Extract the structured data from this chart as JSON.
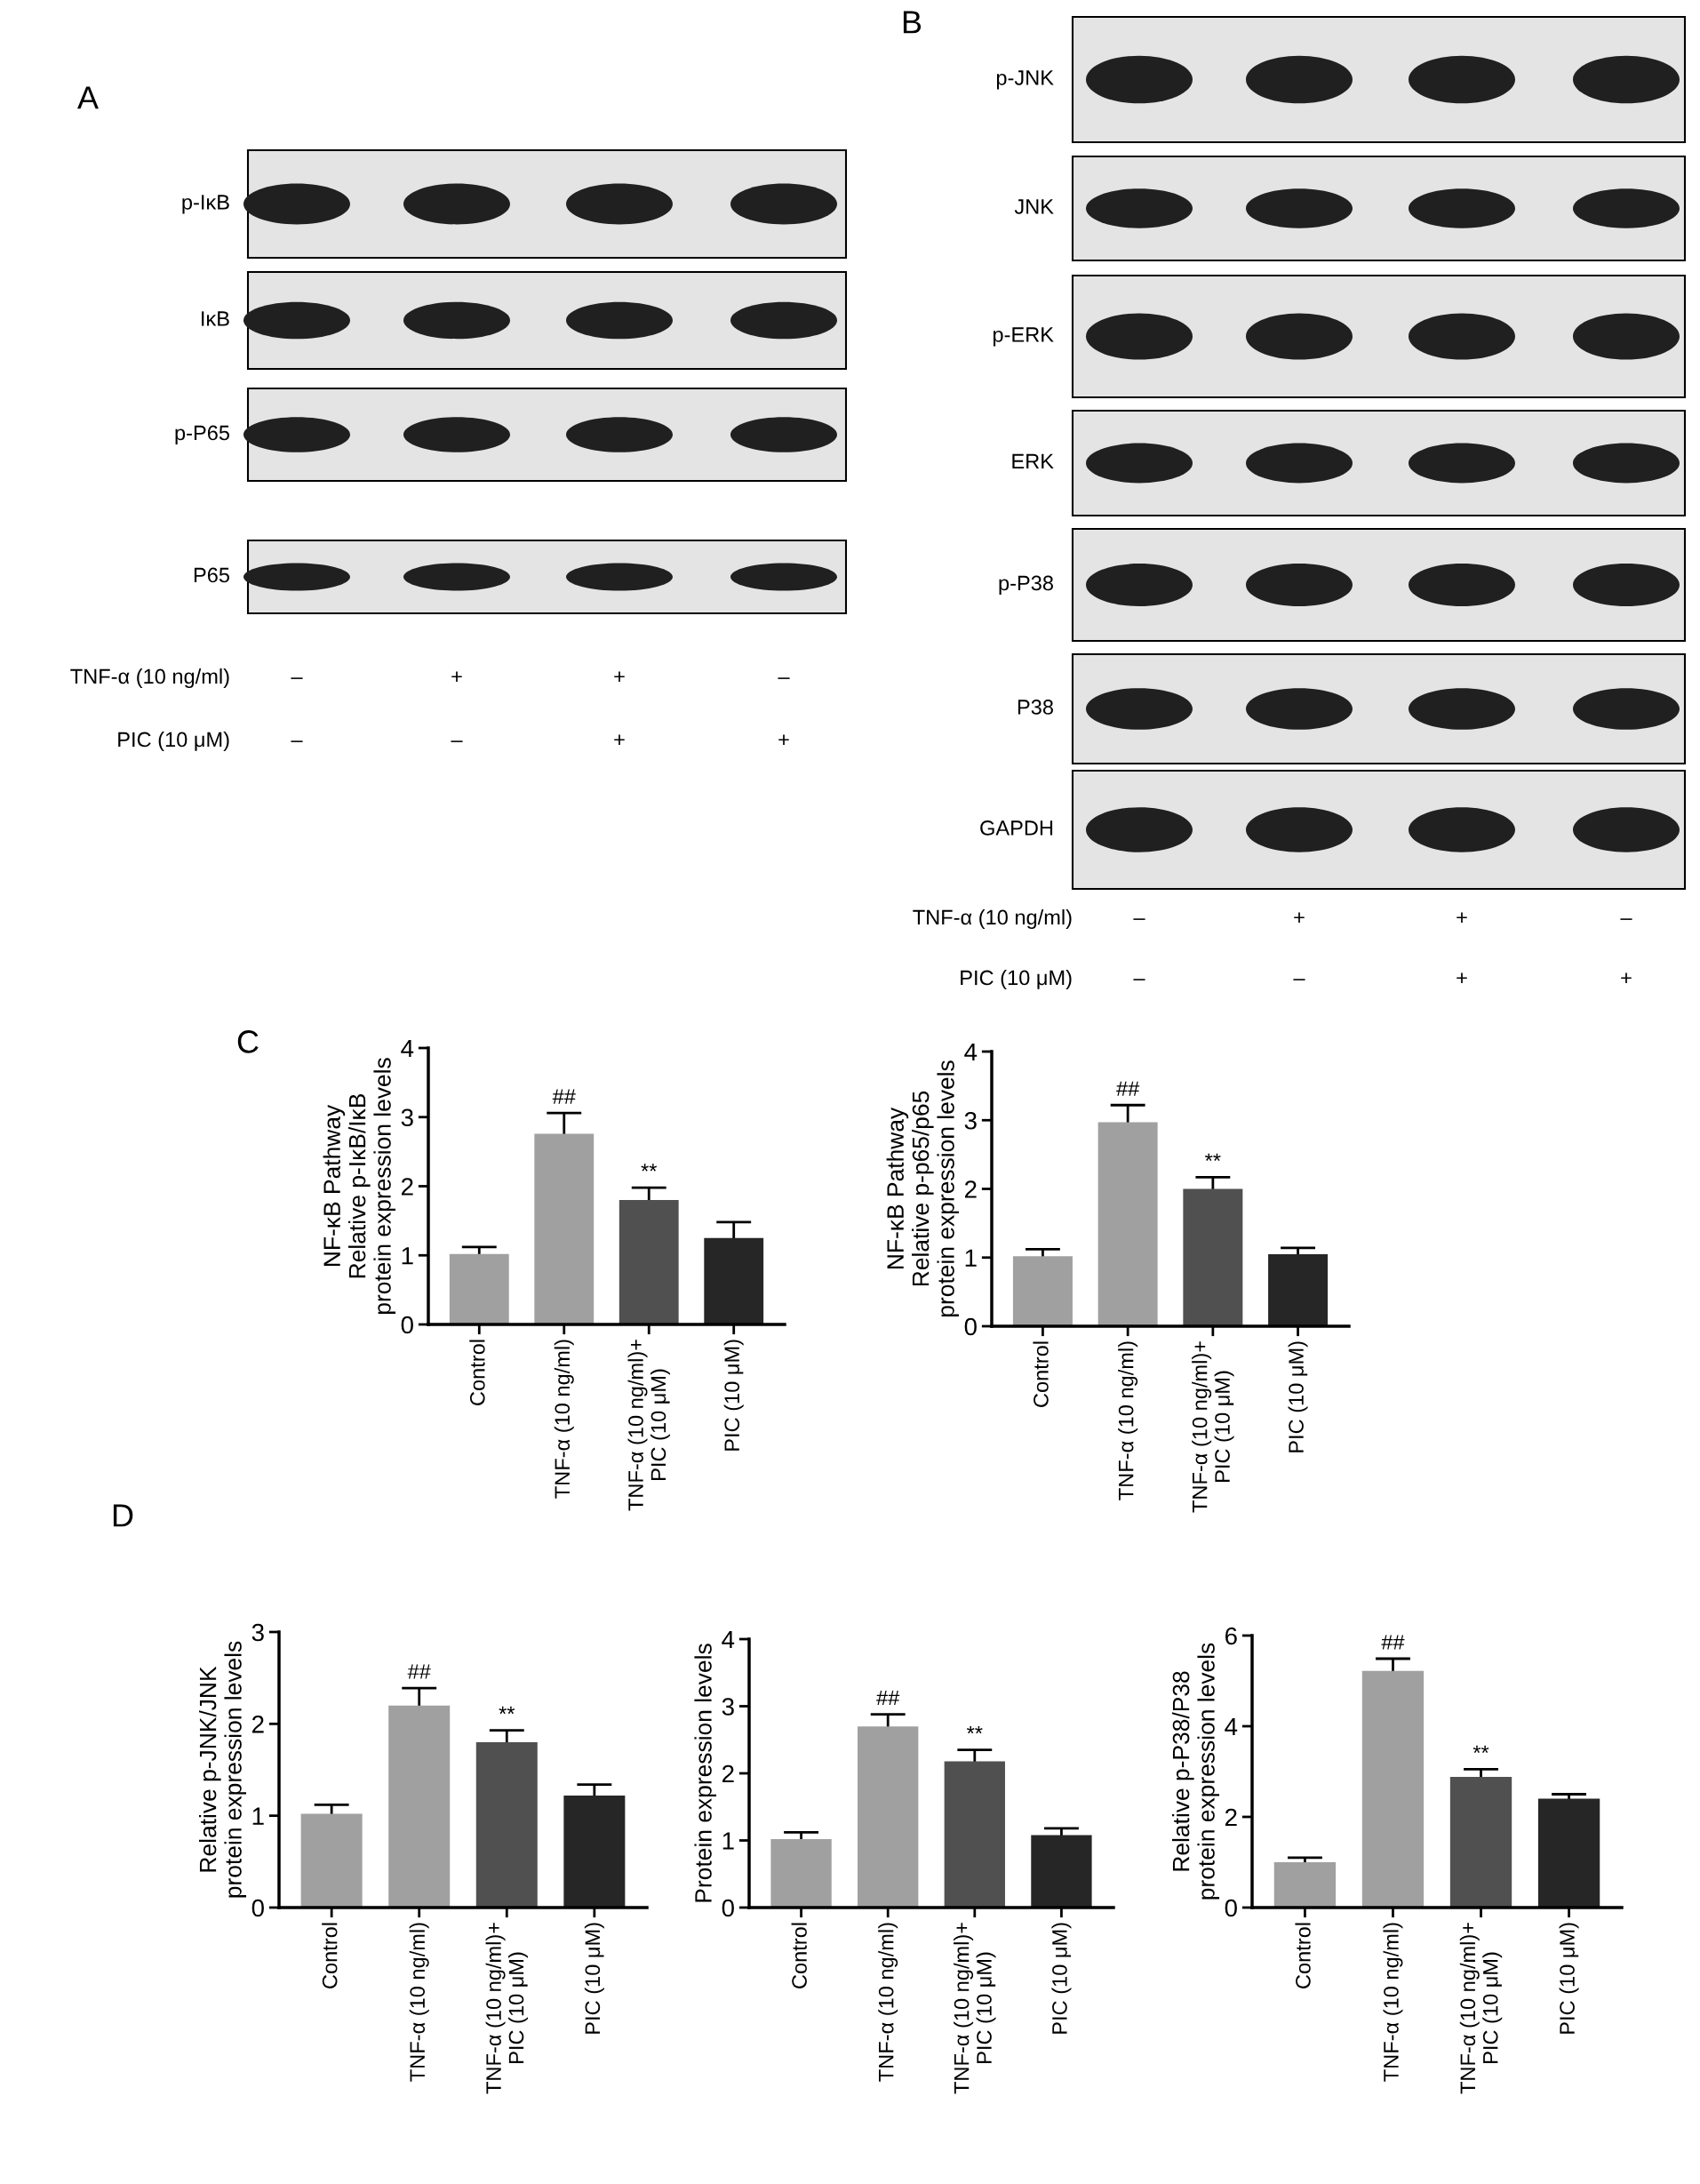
{
  "chart_data": [
    {
      "type": "other",
      "title": "A",
      "categories": [
        "p-IκB",
        "IκB",
        "p-P65",
        "P65"
      ],
      "annotations": [
        "TNF-α (10 ng/ml)",
        "–",
        "+",
        "+",
        "–",
        "PIC (10 μM)",
        "–",
        "–",
        "+",
        "+"
      ]
    },
    {
      "type": "other",
      "title": "B",
      "categories": [
        "p-JNK",
        "JNK",
        "p-ERK",
        "ERK",
        "p-P38",
        "P38",
        "GAPDH"
      ],
      "annotations": [
        "TNF-α (10 ng/ml)",
        "–",
        "+",
        "+",
        "–",
        "PIC (10 μM)",
        "–",
        "–",
        "+",
        "+"
      ]
    },
    {
      "type": "bar",
      "title": "C",
      "ylabel": "NF-κB Pathway\nRelative p-IκB/IκB\nprotein expression levels",
      "categories": [
        "Control",
        "TNF-α (10 ng/ml)",
        "TNF-α (10 ng/ml)+\nPIC (10 μM)",
        "PIC (10 μM)"
      ],
      "values": [
        1.02,
        2.76,
        1.8,
        1.25
      ],
      "errors": [
        0.1,
        0.3,
        0.18,
        0.23
      ],
      "colors": [
        "#a0a0a0",
        "#a0a0a0",
        "#505050",
        "#262626"
      ],
      "ylim": [
        0,
        4
      ],
      "yticks": [
        0,
        1,
        2,
        3,
        4
      ],
      "annotations": [
        {
          "text": "##",
          "x": "TNF-α (10 ng/ml)",
          "y": 3.06
        },
        {
          "text": "**",
          "x": "TNF-α (10 ng/ml)+\nPIC (10 μM)",
          "y": 1.98
        }
      ]
    },
    {
      "type": "bar",
      "ylabel": "NF-κB Pathway\nRelative p-p65/p65\nprotein expression levels",
      "categories": [
        "Control",
        "TNF-α (10 ng/ml)",
        "TNF-α (10 ng/ml)+\nPIC (10 μM)",
        "PIC (10 μM)"
      ],
      "values": [
        1.02,
        2.97,
        2.0,
        1.05
      ],
      "errors": [
        0.1,
        0.25,
        0.17,
        0.09
      ],
      "colors": [
        "#a0a0a0",
        "#a0a0a0",
        "#505050",
        "#262626"
      ],
      "ylim": [
        0,
        4
      ],
      "yticks": [
        0,
        1,
        2,
        3,
        4
      ],
      "annotations": [
        {
          "text": "##",
          "x": "TNF-α (10 ng/ml)",
          "y": 3.22
        },
        {
          "text": "**",
          "x": "TNF-α (10 ng/ml)+\nPIC (10 μM)",
          "y": 2.17
        }
      ]
    },
    {
      "type": "bar",
      "title": "D",
      "ylabel": "Relative p-JNK/JNK\nprotein expression levels",
      "categories": [
        "Control",
        "TNF-α (10 ng/ml)",
        "TNF-α (10 ng/ml)+\nPIC (10 μM)",
        "PIC (10 μM)"
      ],
      "values": [
        1.02,
        2.2,
        1.8,
        1.22
      ],
      "errors": [
        0.1,
        0.19,
        0.13,
        0.12
      ],
      "colors": [
        "#a0a0a0",
        "#a0a0a0",
        "#505050",
        "#262626"
      ],
      "ylim": [
        0,
        3
      ],
      "yticks": [
        0,
        1,
        2,
        3
      ],
      "annotations": [
        {
          "text": "##",
          "x": "TNF-α (10 ng/ml)",
          "y": 2.39
        },
        {
          "text": "**",
          "x": "TNF-α (10 ng/ml)+\nPIC (10 μM)",
          "y": 1.93
        }
      ]
    },
    {
      "type": "bar",
      "ylabel": "Protein expression levels",
      "categories": [
        "Control",
        "TNF-α (10 ng/ml)",
        "TNF-α (10 ng/ml)+\nPIC (10 μM)",
        "PIC (10 μM)"
      ],
      "values": [
        1.02,
        2.7,
        2.18,
        1.08
      ],
      "errors": [
        0.1,
        0.18,
        0.17,
        0.1
      ],
      "colors": [
        "#a0a0a0",
        "#a0a0a0",
        "#505050",
        "#262626"
      ],
      "ylim": [
        0,
        4
      ],
      "yticks": [
        0,
        1,
        2,
        3,
        4
      ],
      "annotations": [
        {
          "text": "##",
          "x": "TNF-α (10 ng/ml)",
          "y": 2.88
        },
        {
          "text": "**",
          "x": "TNF-α (10 ng/ml)+\nPIC (10 μM)",
          "y": 2.35
        }
      ]
    },
    {
      "type": "bar",
      "ylabel": "Relative p-P38/P38\nprotein expression levels",
      "categories": [
        "Control",
        "TNF-α (10 ng/ml)",
        "TNF-α (10 ng/ml)+\nPIC (10 μM)",
        "PIC (10 μM)"
      ],
      "values": [
        1.0,
        5.22,
        2.88,
        2.4
      ],
      "errors": [
        0.1,
        0.27,
        0.17,
        0.1
      ],
      "colors": [
        "#a0a0a0",
        "#a0a0a0",
        "#505050",
        "#262626"
      ],
      "ylim": [
        0,
        6
      ],
      "yticks": [
        0,
        2,
        4,
        6
      ],
      "annotations": [
        {
          "text": "##",
          "x": "TNF-α (10 ng/ml)",
          "y": 5.49
        },
        {
          "text": "**",
          "x": "TNF-α (10 ng/ml)+\nPIC (10 μM)",
          "y": 3.05
        }
      ]
    }
  ]
}
